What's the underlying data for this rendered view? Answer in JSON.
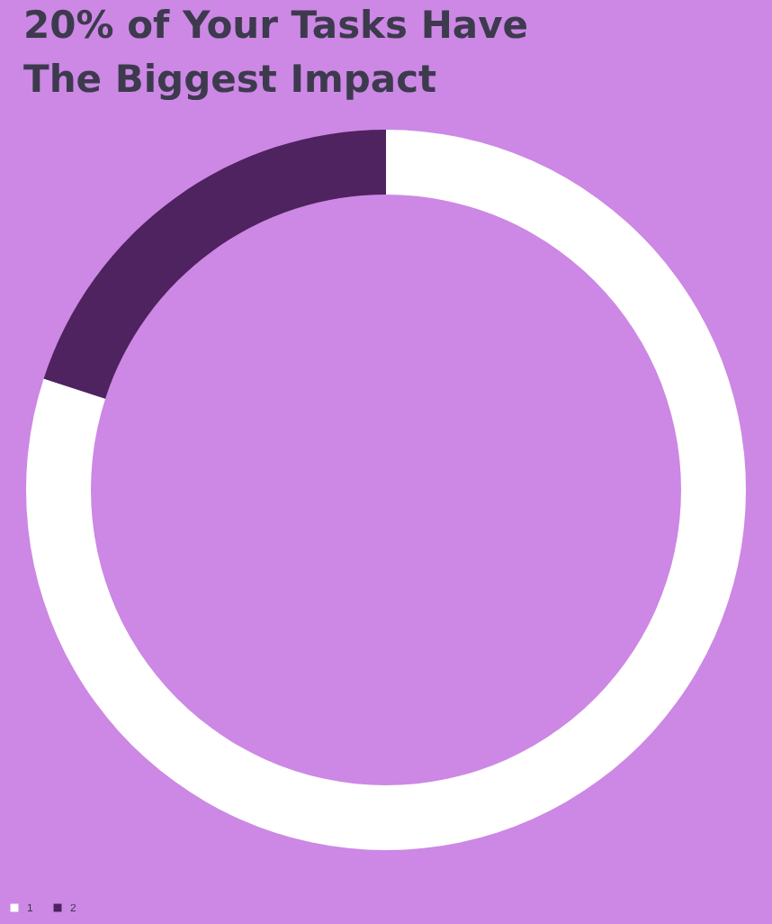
{
  "chart_data": {
    "type": "donut",
    "title": "20% of Your Tasks Have\nThe Biggest Impact",
    "categories": [
      "1",
      "2"
    ],
    "values": [
      80,
      20
    ],
    "colors": [
      "#ffffff",
      "#4f2260"
    ],
    "legend": "bottom"
  }
}
